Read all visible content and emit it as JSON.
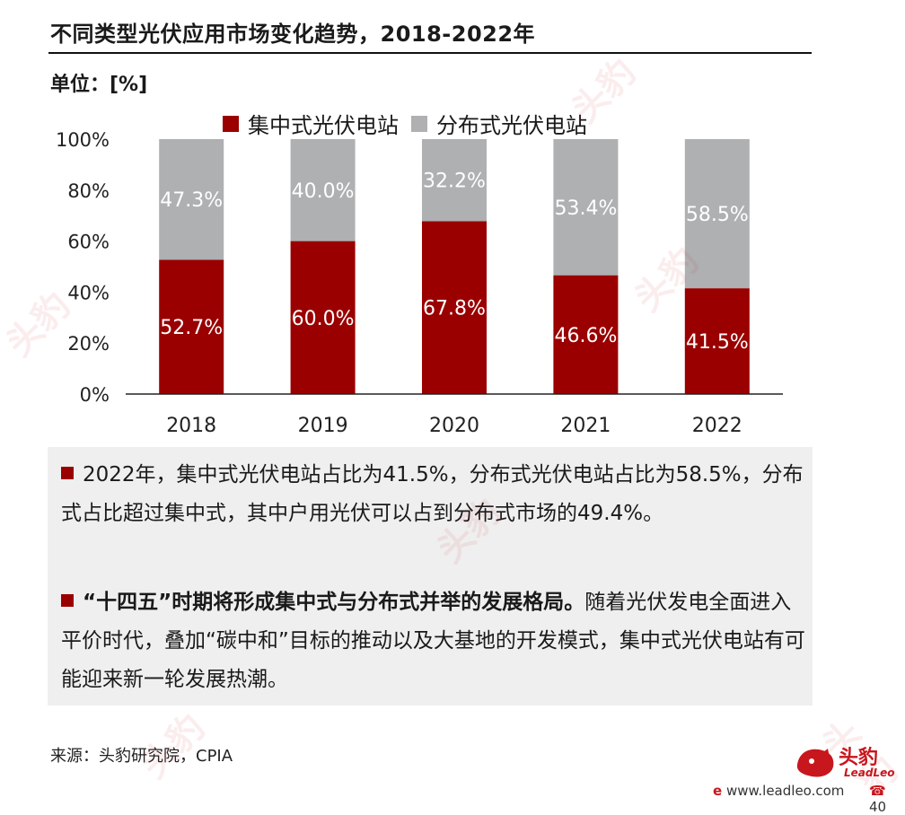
{
  "header": {
    "title": "不同类型光伏应用市场变化趋势，2018-2022年",
    "unit": "单位：[%]"
  },
  "colors": {
    "centralized": "#9a0000",
    "distributed": "#aeb0b2",
    "bullet": "#9a0000",
    "brand": "#c8161d"
  },
  "chart_data": {
    "type": "bar",
    "stacked": true,
    "categories": [
      "2018",
      "2019",
      "2020",
      "2021",
      "2022"
    ],
    "series": [
      {
        "name": "集中式光伏电站",
        "values": [
          52.7,
          60.0,
          67.8,
          46.6,
          41.5
        ],
        "labels": [
          "52.7%",
          "60.0%",
          "67.8%",
          "46.6%",
          "41.5%"
        ]
      },
      {
        "name": "分布式光伏电站",
        "values": [
          47.3,
          40.0,
          32.2,
          53.4,
          58.5
        ],
        "labels": [
          "47.3%",
          "40.0%",
          "32.2%",
          "53.4%",
          "58.5%"
        ]
      }
    ],
    "ylim": [
      0,
      100
    ],
    "yticks": [
      "0%",
      "20%",
      "40%",
      "60%",
      "80%",
      "100%"
    ],
    "legend": "top",
    "grid": false
  },
  "notes": {
    "b1": "2022年，集中式光伏电站占比为41.5%，分布式光伏电站占比为58.5%，分布式占比超过集中式，其中户用光伏可以占到分布式市场的49.4%。",
    "b2_bold": "“十四五”时期将形成集中式与分布式并举的发展格局。",
    "b2_rest": "随着光伏发电全面进入平价时代，叠加“碳中和”目标的推动以及大基地的开发模式，集中式光伏电站有可能迎来新一轮发展热潮。"
  },
  "footer": {
    "source": "来源：头豹研究院，CPIA",
    "logo": "头豹",
    "logo_sub": "LeadLeo",
    "website": "www.leadleo.com",
    "phone": "40"
  },
  "watermark": "头豹"
}
